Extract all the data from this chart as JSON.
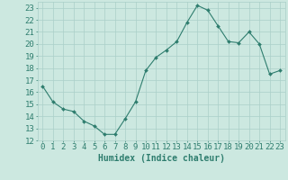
{
  "x": [
    0,
    1,
    2,
    3,
    4,
    5,
    6,
    7,
    8,
    9,
    10,
    11,
    12,
    13,
    14,
    15,
    16,
    17,
    18,
    19,
    20,
    21,
    22,
    23
  ],
  "y": [
    16.5,
    15.2,
    14.6,
    14.4,
    13.6,
    13.2,
    12.5,
    12.5,
    13.8,
    15.2,
    17.8,
    18.9,
    19.5,
    20.2,
    21.8,
    23.2,
    22.8,
    21.5,
    20.2,
    20.1,
    21.0,
    20.0,
    17.5,
    17.8
  ],
  "line_color": "#2e7d6e",
  "marker": "D",
  "marker_size": 2.0,
  "bg_color": "#cce8e0",
  "grid_color": "#aacfc8",
  "xlabel": "Humidex (Indice chaleur)",
  "ylim": [
    12,
    23.5
  ],
  "xlim": [
    -0.5,
    23.5
  ],
  "yticks": [
    12,
    13,
    14,
    15,
    16,
    17,
    18,
    19,
    20,
    21,
    22,
    23
  ],
  "xticks": [
    0,
    1,
    2,
    3,
    4,
    5,
    6,
    7,
    8,
    9,
    10,
    11,
    12,
    13,
    14,
    15,
    16,
    17,
    18,
    19,
    20,
    21,
    22,
    23
  ],
  "title_color": "#2e7d6e",
  "label_fontsize": 7,
  "tick_fontsize": 6.5
}
